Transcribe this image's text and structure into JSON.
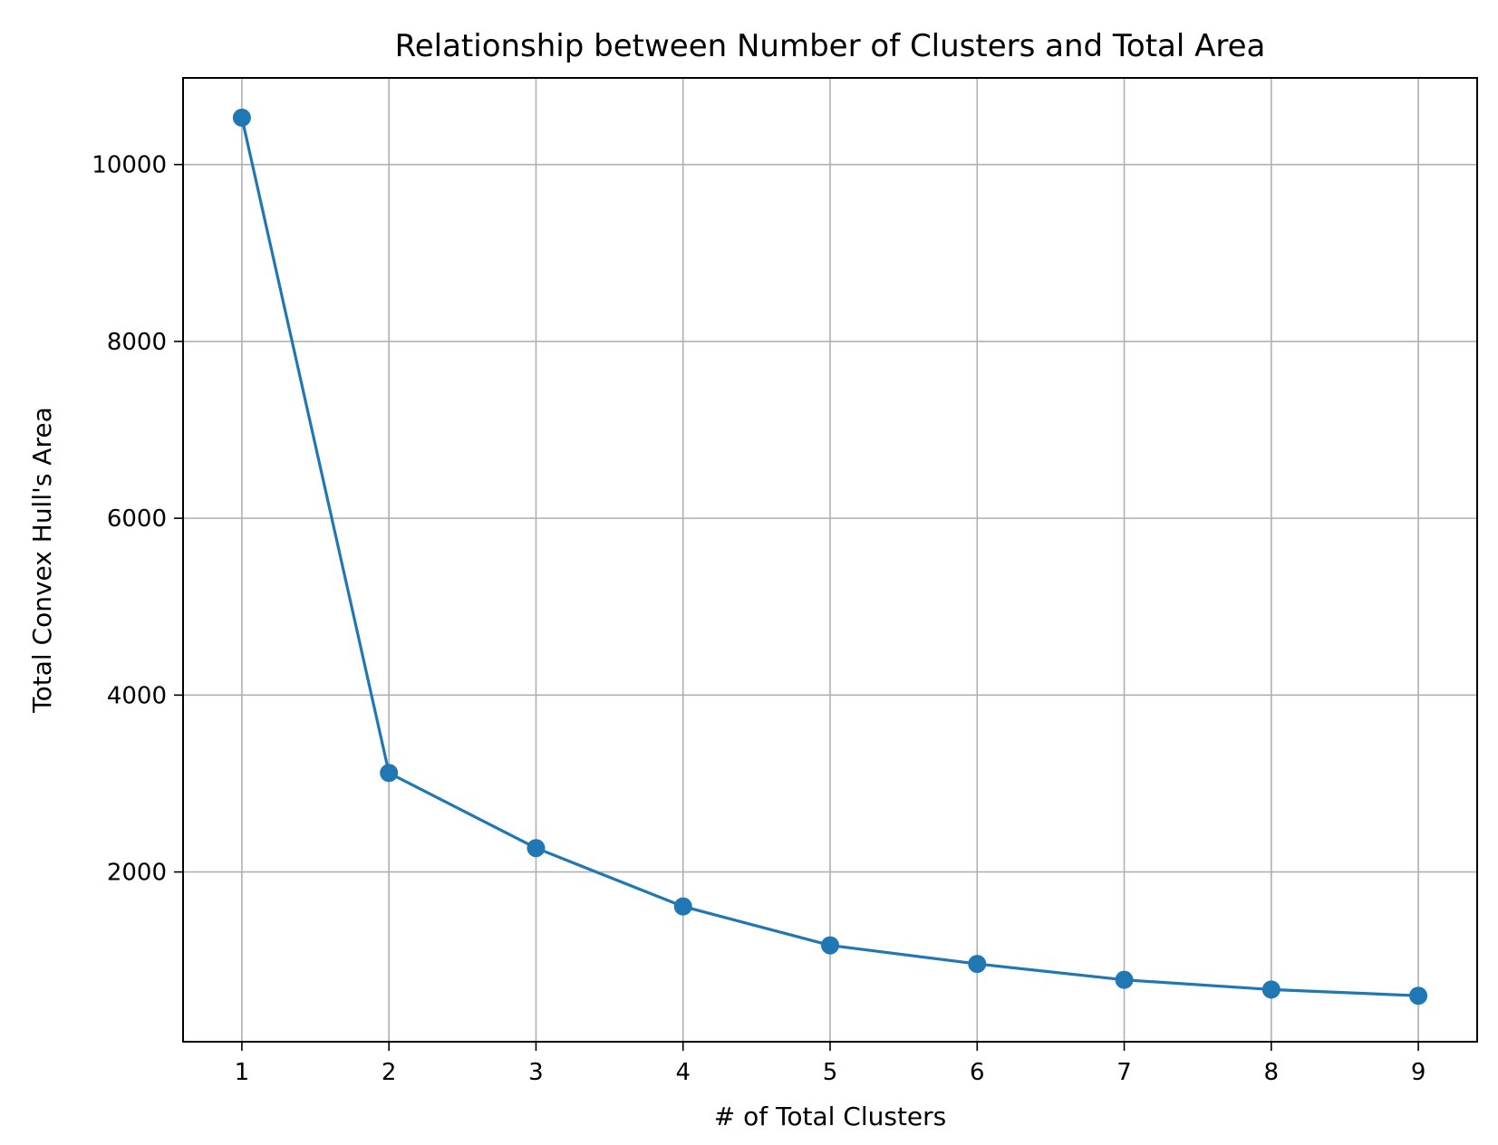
{
  "chart_data": {
    "type": "line",
    "title": "Relationship between Number of Clusters and Total Area",
    "xlabel": "# of Total Clusters",
    "ylabel": "Total Convex Hull's Area",
    "x": [
      1,
      2,
      3,
      4,
      5,
      6,
      7,
      8,
      9
    ],
    "series": [
      {
        "values": [
          10530,
          3120,
          2270,
          1610,
          1170,
          960,
          780,
          670,
          600
        ],
        "color": "#1f77b4",
        "marker": "circle"
      }
    ],
    "xticks": [
      1,
      2,
      3,
      4,
      5,
      6,
      7,
      8,
      9
    ],
    "yticks": [
      2000,
      4000,
      6000,
      8000,
      10000
    ],
    "xlim": [
      0.6,
      9.4
    ],
    "ylim": [
      80,
      10980
    ],
    "grid": true,
    "grid_color": "#b0b0b0",
    "axis_color": "#000000"
  }
}
